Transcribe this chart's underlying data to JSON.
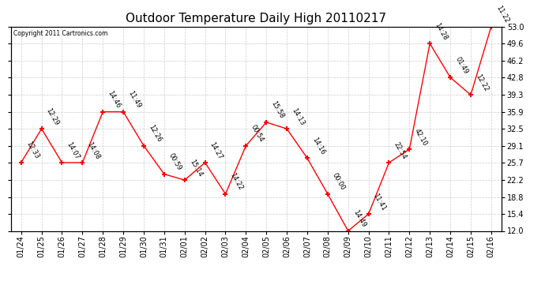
{
  "title": "Outdoor Temperature Daily High 20110217",
  "copyright": "Copyright 2011 Cartronics.com",
  "x_labels": [
    "01/24",
    "01/25",
    "01/26",
    "01/27",
    "01/28",
    "01/29",
    "01/30",
    "01/31",
    "02/01",
    "02/02",
    "02/03",
    "02/04",
    "02/05",
    "02/06",
    "02/07",
    "02/08",
    "02/09",
    "02/10",
    "02/11",
    "02/12",
    "02/13",
    "02/14",
    "02/15",
    "02/16"
  ],
  "y_values": [
    25.7,
    32.5,
    25.7,
    25.7,
    35.9,
    35.9,
    29.1,
    23.4,
    22.2,
    25.7,
    19.4,
    29.1,
    33.8,
    32.5,
    26.6,
    19.4,
    12.0,
    15.4,
    25.7,
    28.4,
    49.6,
    42.8,
    39.3,
    53.0
  ],
  "point_labels": [
    "12:33",
    "12:29",
    "14:07",
    "14:08",
    "14:46",
    "11:49",
    "12:26",
    "00:59",
    "15:14",
    "14:27",
    "14:22",
    "00:54",
    "15:58",
    "14:13",
    "14:16",
    "00:00",
    "14:49",
    "11:41",
    "22:54",
    "42:10",
    "14:28",
    "01:49",
    "12:22",
    "11:22"
  ],
  "ylim": [
    12.0,
    53.0
  ],
  "yticks": [
    12.0,
    15.4,
    18.8,
    22.2,
    25.7,
    29.1,
    32.5,
    35.9,
    39.3,
    42.8,
    46.2,
    49.6,
    53.0
  ],
  "line_color": "red",
  "marker_color": "red",
  "bg_color": "white",
  "grid_color": "#cccccc",
  "title_fontsize": 11,
  "tick_fontsize": 7,
  "point_label_fontsize": 6,
  "copyright_fontsize": 5.5
}
